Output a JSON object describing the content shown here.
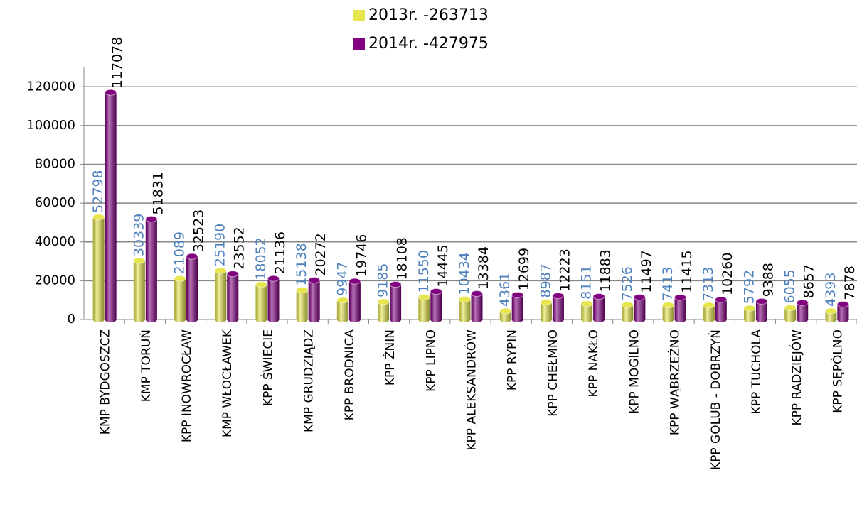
{
  "chart_data": {
    "type": "bar",
    "categories": [
      "KMP BYDGOSZCZ",
      "KMP TORUŃ",
      "KPP INOWROCŁAW",
      "KMP WŁOCŁAWEK",
      "KPP ŚWIECIE",
      "KMP GRUDZIĄDZ",
      "KPP BRODNICA",
      "KPP ŻNIN",
      "KPP LIPNO",
      "KPP ALEKSANDRÓW",
      "KPP RYPIN",
      "KPP CHEŁMNO",
      "KPP NAKŁO",
      "KPP MOGILNO",
      "KPP WĄBRZEŹNO",
      "KPP GOLUB - DOBRZYŃ",
      "KPP TUCHOLA",
      "KPP RADZIEJÓW",
      "KPP SĘPÓLNO"
    ],
    "series": [
      {
        "name": "2013r. -263713",
        "color": "#e6e64c",
        "label_color": "#4f81bd",
        "values": [
          52798,
          30339,
          21089,
          25190,
          18052,
          15138,
          9947,
          9185,
          11550,
          10434,
          4361,
          8987,
          8151,
          7526,
          7413,
          7313,
          5792,
          6055,
          4393
        ]
      },
      {
        "name": "2014r. -427975",
        "color": "#800080",
        "label_color": "#000000",
        "values": [
          117078,
          51831,
          32523,
          23552,
          21136,
          20272,
          19746,
          18108,
          14445,
          13384,
          12699,
          12223,
          11883,
          11497,
          11415,
          10260,
          9388,
          8657,
          7878
        ]
      }
    ],
    "ylim": [
      0,
      130000
    ],
    "yticks": [
      0,
      20000,
      40000,
      60000,
      80000,
      100000,
      120000
    ],
    "grid": true,
    "legend": "top"
  }
}
